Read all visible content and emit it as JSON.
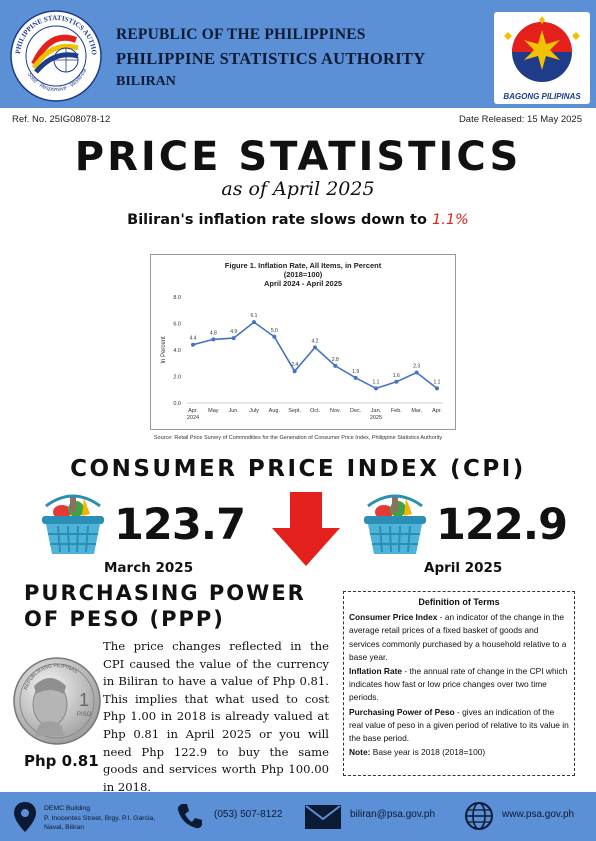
{
  "header": {
    "republic": "REPUBLIC OF THE PHILIPPINES",
    "agency": "PHILIPPINE STATISTICS AUTHORITY",
    "province": "BILIRAN",
    "psa_logo_text": "PHILIPPINE STATISTICS AUTHORITY",
    "psa_logo_tagline": "Solid · Responsive · World-class",
    "right_logo_text": "BAGONG PILIPINAS"
  },
  "meta": {
    "ref_no": "Ref. No. 25IG08078-12",
    "date_released": "Date Released: 15 May 2025"
  },
  "title": "PRICE STATISTICS",
  "subtitle": "as of April 2025",
  "headline": {
    "text": "Biliran's inflation rate slows down to ",
    "rate": "1.1%"
  },
  "chart_data": {
    "type": "line",
    "title": "Figure 1. Inflation Rate, All Items, in Percent",
    "subtitle_1": "(2018=100)",
    "subtitle_2": "April 2024 - April 2025",
    "ylabel": "In Percent",
    "ylim": [
      0,
      8
    ],
    "yticks": [
      "0.0",
      "2.0",
      "4.0",
      "6.0",
      "8.0"
    ],
    "categories": [
      "Apr.",
      "May",
      "Jun.",
      "July",
      "Aug.",
      "Sept.",
      "Oct.",
      "Nov.",
      "Dec.",
      "Jan.",
      "Feb.",
      "Mar.",
      "Apr."
    ],
    "year_labels": {
      "0": "2024",
      "9": "2025"
    },
    "values": [
      4.4,
      4.8,
      4.9,
      6.1,
      5.0,
      2.4,
      4.2,
      2.8,
      1.9,
      1.1,
      1.6,
      2.3,
      1.1
    ],
    "value_labels": [
      "4.4",
      "4.8",
      "4.9",
      "6.1",
      "5.0",
      "2.4",
      "4.2",
      "2.8",
      "1.9",
      "1.1",
      "1.6",
      "2.3",
      "1.1"
    ],
    "line_color": "#4472c4",
    "grid": false,
    "source": "Source: Retail Price Survey of Commodities for the Generation of Consumer Price Index, Philippine Statistics Authority"
  },
  "cpi": {
    "heading": "CONSUMER PRICE INDEX (CPI)",
    "march_value": "123.7",
    "march_label": "March 2025",
    "april_value": "122.9",
    "april_label": "April 2025",
    "arrow_color": "#e3201b"
  },
  "ppp": {
    "heading_line1": "PURCHASING POWER",
    "heading_line2": "OF PESO (PPP)",
    "value": "Php 0.81",
    "body": "The price changes reflected in the CPI caused the value of the currency in Biliran to have a value of Php 0.81. This implies that what used to cost Php 1.00 in 2018 is already valued at Php 0.81 in April 2025 or you will need  Php 122.9 to buy the same goods and services worth Php 100.00 in 2018.",
    "coin_top_text": "REPUBLIKANG PILIPINAS",
    "coin_denomination": "1",
    "coin_unit": "PISO"
  },
  "definitions": {
    "title": "Definition of Terms",
    "items": [
      {
        "term": "Consumer Price Index",
        "text": " - an indicator of the change in the average retail prices of a fixed basket of goods and services commonly purchased by a household relative to a base year."
      },
      {
        "term": "Inflation Rate",
        "text": " - the annual rate of change in the CPI which indicates how fast or low price changes over two time periods."
      },
      {
        "term": "Purchasing Power of Peso",
        "text": " - gives an indication of the real value of peso in a given period of relative to its value in the base period."
      },
      {
        "term": "Note:",
        "text": " Base year is 2018 (2018=100)"
      }
    ]
  },
  "footer": {
    "address_line1": "DEMC Building",
    "address_line2": "P. Inocentes Street, Brgy. P.I. Garcia,",
    "address_line3": "Naval, Biliran",
    "phone": "(053) 507-8122",
    "email": "biliran@psa.gov.ph",
    "website": "www.psa.gov.ph"
  },
  "colors": {
    "header_bg": "#5b8fd6",
    "accent_red": "#e0201b"
  }
}
